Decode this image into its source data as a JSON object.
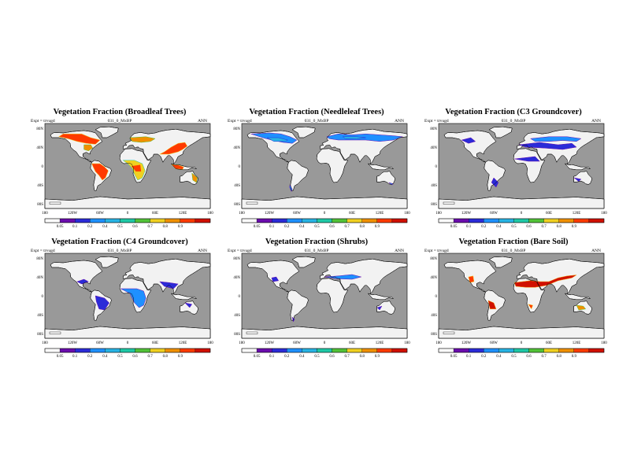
{
  "figure": {
    "colors": {
      "ocean": "#999999",
      "land_empty": "#f2f2f2",
      "bin_colors": [
        "#ffffff",
        "#6a0dad",
        "#2b2bd8",
        "#1e90ff",
        "#27b3e3",
        "#1fc8a6",
        "#52c238",
        "#f0d020",
        "#f09000",
        "#ff3a00",
        "#d01000"
      ]
    }
  },
  "panels": [
    {
      "title": "Vegetation Fraction (Broadleaf Trees)",
      "expt": "Expt = trvugd",
      "subtitle": "031_0_MxBP",
      "season": "ANN",
      "lon_labels": [
        "180",
        "120W",
        "60W",
        "0",
        "60E",
        "120E",
        "180"
      ],
      "lat_labels": [
        "80N",
        "40N",
        "0",
        "40S",
        "80S"
      ],
      "colorbar_labels": [
        "0.05",
        "0.1",
        "0.2",
        "0.4",
        "0.5",
        "0.6",
        "0.7",
        "0.8",
        "0.9"
      ],
      "fill_regions": "broadleaf"
    },
    {
      "title": "Vegetation Fraction (Needleleaf Trees)",
      "expt": "Expt = trvugd",
      "subtitle": "031_0_MxBP",
      "season": "ANN",
      "lon_labels": [
        "180",
        "120W",
        "60W",
        "0",
        "60E",
        "120E",
        "180"
      ],
      "lat_labels": [
        "80N",
        "40N",
        "0",
        "40S",
        "80S"
      ],
      "colorbar_labels": [
        "0.05",
        "0.1",
        "0.2",
        "0.4",
        "0.5",
        "0.6",
        "0.7",
        "0.8",
        "0.9"
      ],
      "fill_regions": "needleleaf"
    },
    {
      "title": "Vegetation Fraction (C3 Groundcover)",
      "expt": "Expt = trvugd",
      "subtitle": "031_0_MxBP",
      "season": "ANN",
      "lon_labels": [
        "180",
        "120W",
        "60W",
        "0",
        "60E",
        "120E",
        "180"
      ],
      "lat_labels": [
        "80N",
        "40N",
        "0",
        "40S",
        "80S"
      ],
      "colorbar_labels": [
        "0.05",
        "0.1",
        "0.2",
        "0.4",
        "0.5",
        "0.6",
        "0.7",
        "0.8",
        "0.9"
      ],
      "fill_regions": "c3"
    },
    {
      "title": "Vegetation Fraction (C4 Groundcover)",
      "expt": "Expt = trvugd",
      "subtitle": "031_0_MxBP",
      "season": "ANN",
      "lon_labels": [
        "180",
        "120W",
        "60W",
        "0",
        "60E",
        "120E",
        "180"
      ],
      "lat_labels": [
        "80N",
        "40N",
        "0",
        "40S",
        "80S"
      ],
      "colorbar_labels": [
        "0.05",
        "0.1",
        "0.2",
        "0.4",
        "0.5",
        "0.6",
        "0.7",
        "0.8",
        "0.9"
      ],
      "fill_regions": "c4"
    },
    {
      "title": "Vegetation Fraction (Shrubs)",
      "expt": "Expt = trvugd",
      "subtitle": "031_0_MxBP",
      "season": "ANN",
      "lon_labels": [
        "180",
        "120W",
        "60W",
        "0",
        "60E",
        "120E",
        "180"
      ],
      "lat_labels": [
        "80N",
        "40N",
        "0",
        "40S",
        "80S"
      ],
      "colorbar_labels": [
        "0.05",
        "0.1",
        "0.2",
        "0.4",
        "0.5",
        "0.6",
        "0.7",
        "0.8",
        "0.9"
      ],
      "fill_regions": "shrubs"
    },
    {
      "title": "Vegetation Fraction (Bare Soil)",
      "expt": "Expt = trvugd",
      "subtitle": "031_0_MxBP",
      "season": "ANN",
      "lon_labels": [
        "180",
        "120W",
        "60W",
        "0",
        "60E",
        "120E",
        "180"
      ],
      "lat_labels": [
        "80N",
        "40N",
        "0",
        "40S",
        "80S"
      ],
      "colorbar_labels": [
        "0.05",
        "0.1",
        "0.2",
        "0.4",
        "0.5",
        "0.6",
        "0.7",
        "0.8",
        "0.9"
      ],
      "fill_regions": "baresoil"
    }
  ]
}
